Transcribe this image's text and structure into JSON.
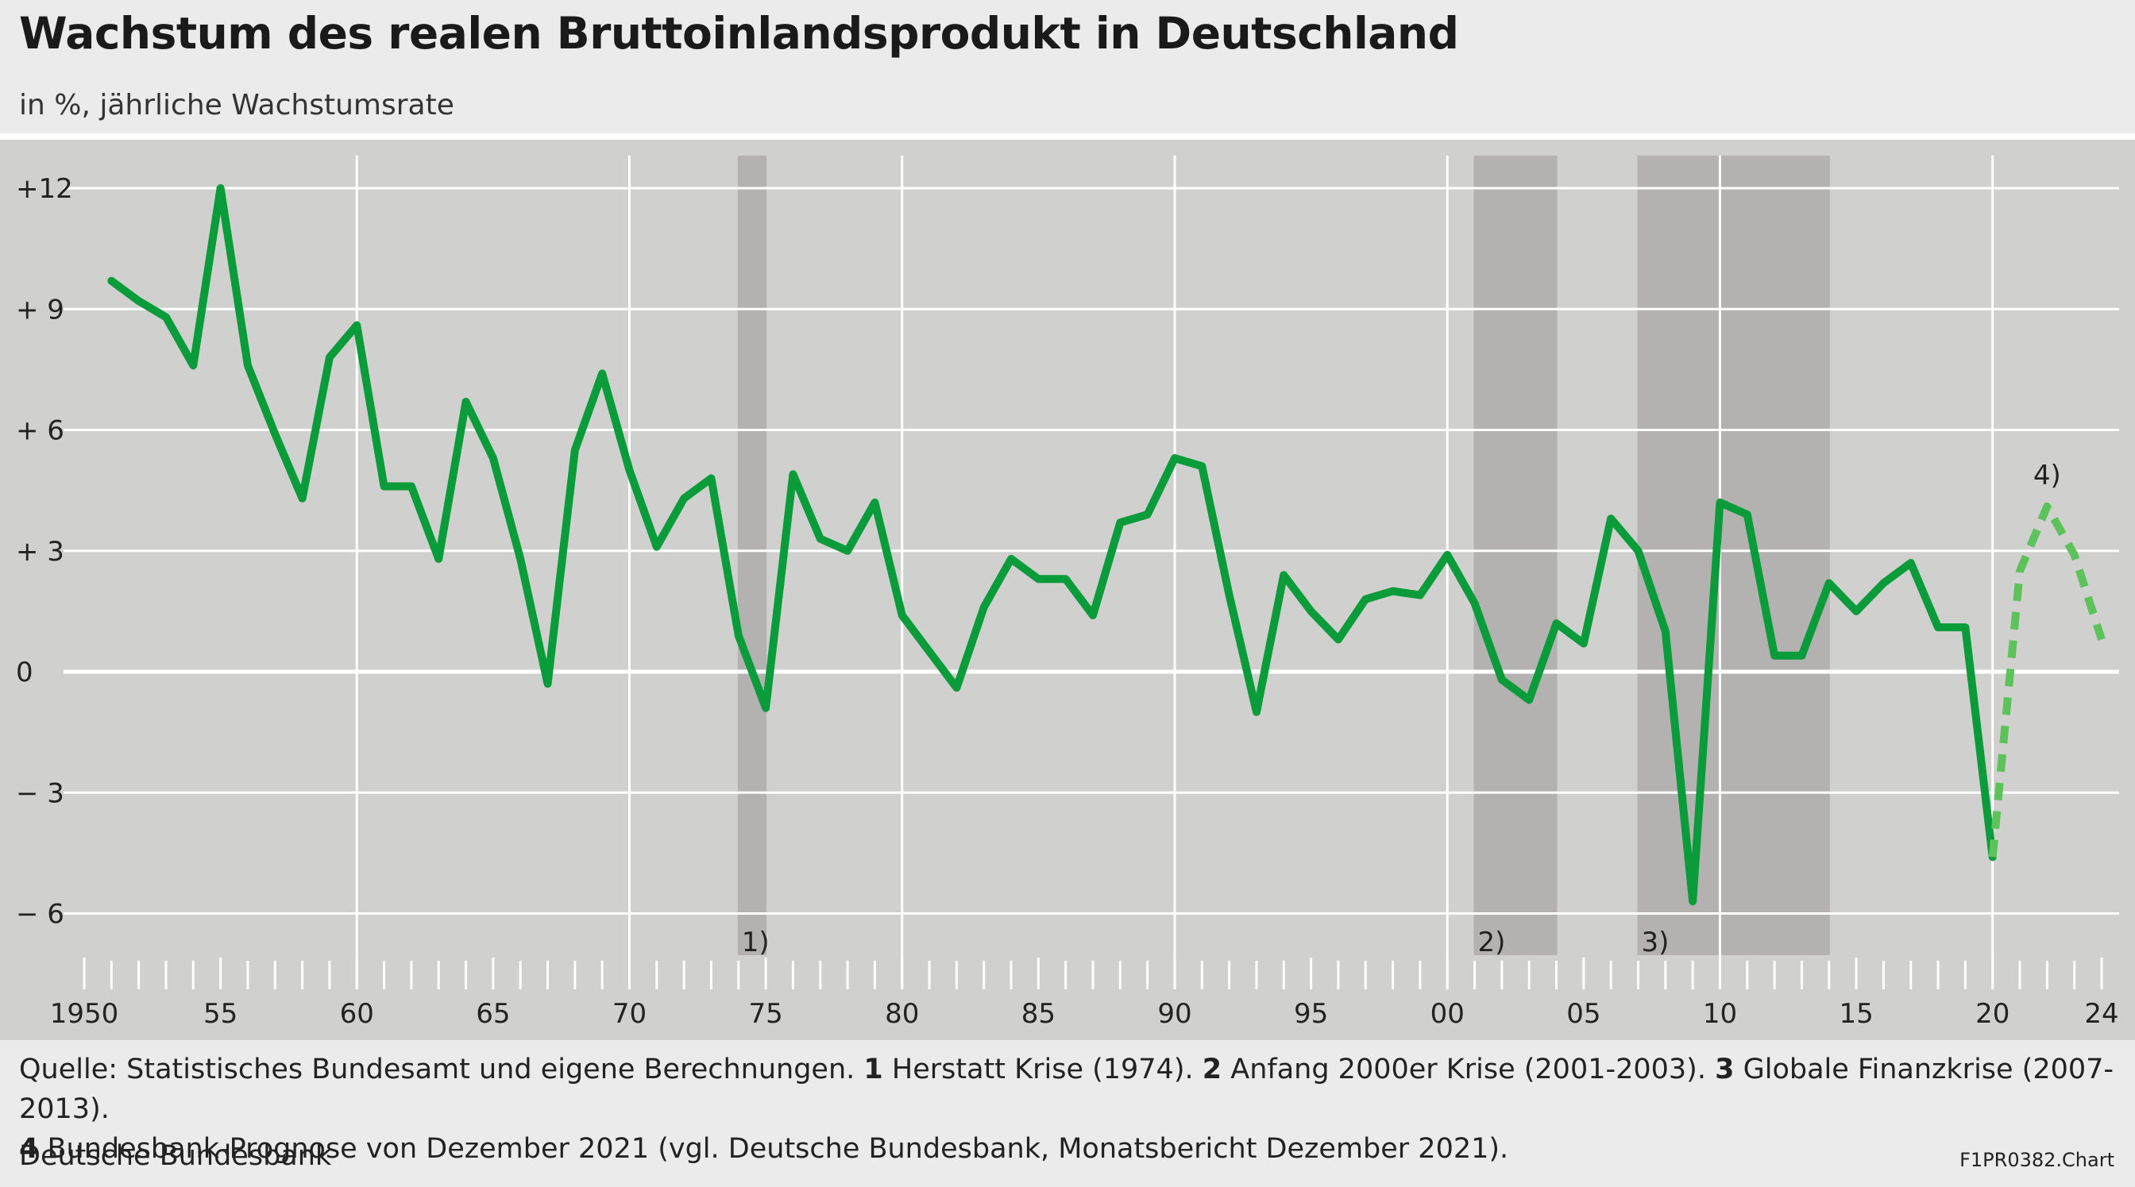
{
  "title": "Wachstum des realen Bruttoinlandsprodukt in Deutschland",
  "subtitle": "in %, jährliche Wachstumsrate",
  "footer": {
    "source_intro": "Quelle: Statistisches Bundesamt und eigene Berechnungen.",
    "notes": [
      {
        "num": "1",
        "text": "Herstatt Krise (1974)."
      },
      {
        "num": "2",
        "text": "Anfang 2000er Krise (2001-2003)."
      },
      {
        "num": "3",
        "text": "Globale Finanzkrise (2007-2013)."
      },
      {
        "num": "4",
        "text": "Bundesbank-Prognose von Dezember 2021 (vgl. Deutsche Bundesbank, Monatsbericht Dezember 2021)."
      }
    ],
    "org": "Deutsche Bundesbank",
    "code": "F1PR0382.Chart"
  },
  "colors": {
    "background": "#ebebeb",
    "plot_bg": "#d0d0cf",
    "crisis_band": "#b3b2b1",
    "grid": "#ffffff",
    "line": "#0a9b3a",
    "forecast": "#5cc25a"
  },
  "chart_data": {
    "type": "line",
    "title": "Wachstum des realen Bruttoinlandsprodukt in Deutschland",
    "subtitle": "in %, jährliche Wachstumsrate",
    "xlim": [
      1950,
      2024
    ],
    "ylim": [
      -7,
      12.8
    ],
    "x_tick_labels": [
      {
        "year": 1950,
        "label": "1950"
      },
      {
        "year": 1955,
        "label": "55"
      },
      {
        "year": 1960,
        "label": "60"
      },
      {
        "year": 1965,
        "label": "65"
      },
      {
        "year": 1970,
        "label": "70"
      },
      {
        "year": 1975,
        "label": "75"
      },
      {
        "year": 1980,
        "label": "80"
      },
      {
        "year": 1985,
        "label": "85"
      },
      {
        "year": 1990,
        "label": "90"
      },
      {
        "year": 1995,
        "label": "95"
      },
      {
        "year": 2000,
        "label": "00"
      },
      {
        "year": 2005,
        "label": "05"
      },
      {
        "year": 2010,
        "label": "10"
      },
      {
        "year": 2015,
        "label": "15"
      },
      {
        "year": 2020,
        "label": "20"
      },
      {
        "year": 2024,
        "label": "24"
      }
    ],
    "y_ticks": [
      {
        "value": 12,
        "label": "+12"
      },
      {
        "value": 9,
        "label": "+ 9"
      },
      {
        "value": 6,
        "label": "+ 6"
      },
      {
        "value": 3,
        "label": "+ 3"
      },
      {
        "value": 0,
        "label": "0"
      },
      {
        "value": -3,
        "label": "− 3"
      },
      {
        "value": -6,
        "label": "− 6"
      }
    ],
    "vertical_gridlines": [
      1960,
      1970,
      1980,
      1990,
      2000,
      2010,
      2020
    ],
    "crisis_bands": [
      {
        "start": 1974,
        "end": 1975,
        "label": "1)"
      },
      {
        "start": 2001,
        "end": 2004,
        "label": "2)"
      },
      {
        "start": 2007,
        "end": 2014,
        "label": "3)"
      }
    ],
    "series": [
      {
        "style": "solid",
        "x": [
          1951,
          1952,
          1953,
          1954,
          1955,
          1956,
          1957,
          1958,
          1959,
          1960,
          1961,
          1962,
          1963,
          1964,
          1965,
          1966,
          1967,
          1968,
          1969,
          1970,
          1971,
          1972,
          1973,
          1974,
          1975,
          1976,
          1977,
          1978,
          1979,
          1980,
          1981,
          1982,
          1983,
          1984,
          1985,
          1986,
          1987,
          1988,
          1989,
          1990,
          1991,
          1992,
          1993,
          1994,
          1995,
          1996,
          1997,
          1998,
          1999,
          2000,
          2001,
          2002,
          2003,
          2004,
          2005,
          2006,
          2007,
          2008,
          2009,
          2010,
          2011,
          2012,
          2013,
          2014,
          2015,
          2016,
          2017,
          2018,
          2019,
          2020
        ],
        "y": [
          9.7,
          9.2,
          8.8,
          7.6,
          12.0,
          7.6,
          5.9,
          4.3,
          7.8,
          8.6,
          4.6,
          4.6,
          2.8,
          6.7,
          5.3,
          2.8,
          -0.3,
          5.5,
          7.4,
          5.0,
          3.1,
          4.3,
          4.8,
          0.9,
          -0.9,
          4.9,
          3.3,
          3.0,
          4.2,
          1.4,
          0.5,
          -0.4,
          1.6,
          2.8,
          2.3,
          2.3,
          1.4,
          3.7,
          3.9,
          5.3,
          5.1,
          1.9,
          -1.0,
          2.4,
          1.5,
          0.8,
          1.8,
          2.0,
          1.9,
          2.9,
          1.7,
          -0.2,
          -0.7,
          1.2,
          0.7,
          3.8,
          3.0,
          1.0,
          -5.7,
          4.2,
          3.9,
          0.4,
          0.4,
          2.2,
          1.5,
          2.2,
          2.7,
          1.1,
          1.1,
          -4.6
        ]
      },
      {
        "style": "dashed",
        "label": "4)",
        "x": [
          2020,
          2021,
          2022,
          2023,
          2024
        ],
        "y": [
          -4.6,
          2.5,
          4.1,
          2.9,
          0.8
        ]
      }
    ],
    "grid": true
  }
}
